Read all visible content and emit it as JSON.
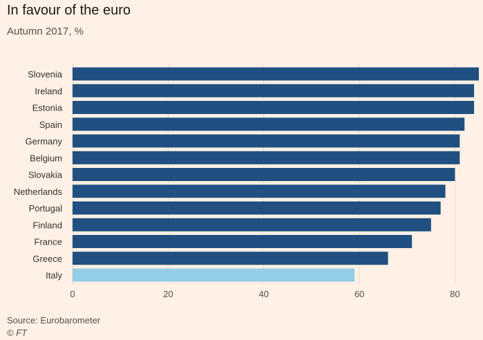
{
  "chart_data": {
    "type": "bar",
    "orientation": "horizontal",
    "title": "In favour of the euro",
    "subtitle": "Autumn 2017, %",
    "categories": [
      "Slovenia",
      "Ireland",
      "Estonia",
      "Spain",
      "Germany",
      "Belgium",
      "Slovakia",
      "Netherlands",
      "Portugal",
      "Finland",
      "France",
      "Greece",
      "Italy"
    ],
    "values": [
      85,
      84,
      84,
      82,
      81,
      81,
      80,
      78,
      77,
      75,
      71,
      66,
      59
    ],
    "highlight": [
      "Italy"
    ],
    "xlim": [
      0,
      85
    ],
    "xticks": [
      0,
      20,
      40,
      60,
      80
    ],
    "grid": true,
    "colors": {
      "bar": "#1f5081",
      "highlight": "#93cfe6",
      "grid": "#e6d9ce",
      "background": "#fff1e5"
    }
  },
  "footer": {
    "source": "Source: Eurobarometer",
    "credit": "© FT"
  }
}
